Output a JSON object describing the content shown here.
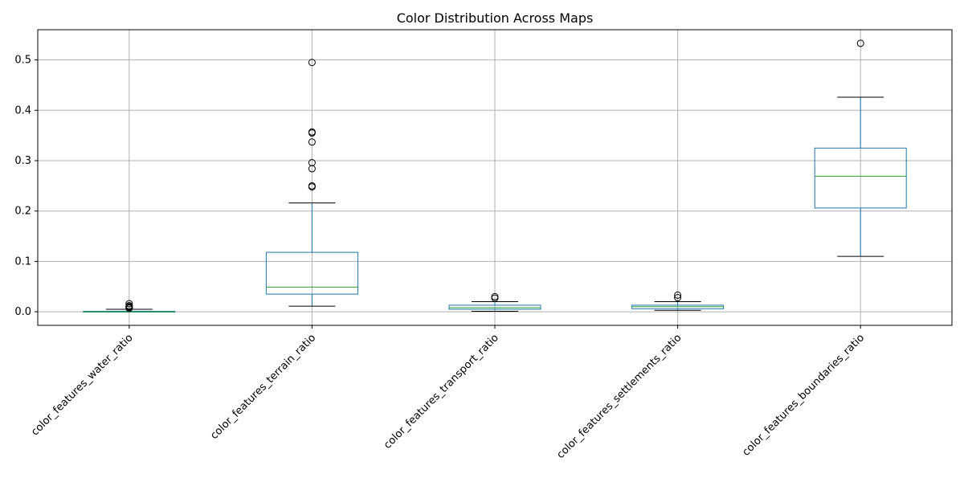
{
  "chart_data": {
    "type": "box",
    "title": "Color Distribution Across Maps",
    "xlabel": "",
    "ylabel": "",
    "ylim": [
      -0.027,
      0.56
    ],
    "yticks": [
      0.0,
      0.1,
      0.2,
      0.3,
      0.4,
      0.5
    ],
    "ytick_labels": [
      "0.0",
      "0.1",
      "0.2",
      "0.3",
      "0.4",
      "0.5"
    ],
    "grid": true,
    "categories": [
      "color_features_water_ratio",
      "color_features_terrain_ratio",
      "color_features_transport_ratio",
      "color_features_settlements_ratio",
      "color_features_boundaries_ratio"
    ],
    "boxes": [
      {
        "whisker_low": 0.0,
        "q1": 0.0,
        "median": 0.0,
        "q3": 0.001,
        "whisker_high": 0.005,
        "outliers": [
          0.016,
          0.012,
          0.01,
          0.009,
          0.008,
          0.007
        ]
      },
      {
        "whisker_low": 0.011,
        "q1": 0.035,
        "median": 0.049,
        "q3": 0.118,
        "whisker_high": 0.216,
        "outliers": [
          0.495,
          0.357,
          0.355,
          0.337,
          0.296,
          0.284,
          0.25,
          0.248
        ]
      },
      {
        "whisker_low": 0.001,
        "q1": 0.005,
        "median": 0.008,
        "q3": 0.013,
        "whisker_high": 0.02,
        "outliers": [
          0.03,
          0.027
        ]
      },
      {
        "whisker_low": 0.003,
        "q1": 0.006,
        "median": 0.01,
        "q3": 0.013,
        "whisker_high": 0.02,
        "outliers": [
          0.033,
          0.028
        ]
      },
      {
        "whisker_low": 0.11,
        "q1": 0.206,
        "median": 0.269,
        "q3": 0.325,
        "whisker_high": 0.426,
        "outliers": [
          0.533
        ]
      }
    ],
    "colors": {
      "box": "#1f77b4",
      "median": "#2ca02c",
      "whisker_cap": "#000000",
      "grid": "#b0b0b0"
    }
  }
}
